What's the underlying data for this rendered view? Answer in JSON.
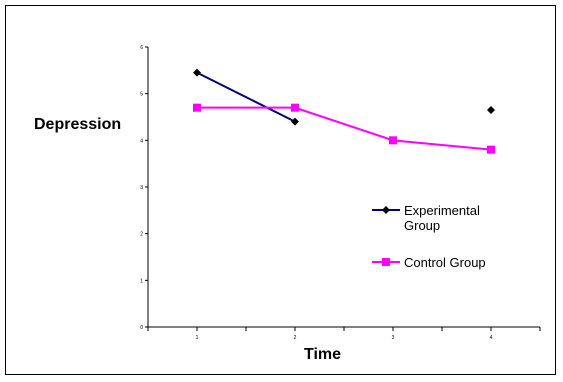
{
  "chart_data": {
    "type": "line",
    "title": "",
    "xlabel": "Time",
    "ylabel": "Depression",
    "x": [
      1,
      2,
      3,
      4
    ],
    "xlim": [
      0.5,
      4.5
    ],
    "ylim": [
      0,
      6
    ],
    "yticks": [
      0,
      1,
      2,
      3,
      4,
      5,
      6
    ],
    "xticks": [
      1,
      2,
      3,
      4
    ],
    "grid": false,
    "legend_position": "right",
    "series": [
      {
        "name_lines": [
          "Experimental",
          "Group"
        ],
        "color": "#000080",
        "marker": "diamond",
        "values": [
          5.45,
          4.4,
          null,
          4.65
        ]
      },
      {
        "name_lines": [
          "Control Group"
        ],
        "color": "#ff00ff",
        "marker": "square",
        "values": [
          4.7,
          4.7,
          4.0,
          3.8
        ]
      }
    ]
  }
}
